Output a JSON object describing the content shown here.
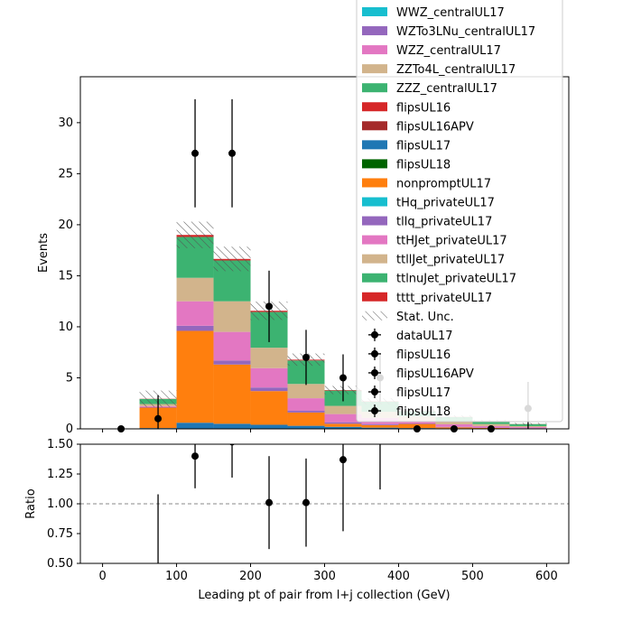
{
  "chart_data": {
    "type": "bar",
    "xlabel": "Leading pt of pair from l+j collection (GeV)",
    "ylabel": "Events",
    "ratio_ylabel": "Ratio",
    "xlim": [
      -30,
      630
    ],
    "ylim": [
      0,
      34.5
    ],
    "ratio_ylim": [
      0.5,
      1.5
    ],
    "x_ticks": [
      0,
      100,
      200,
      300,
      400,
      500,
      600
    ],
    "y_ticks": [
      0,
      5,
      10,
      15,
      20,
      25,
      30
    ],
    "ratio_y_ticks": [
      "0.50",
      "0.75",
      "1.00",
      "1.25",
      "1.50"
    ],
    "ratio_reference_line": 1.0,
    "bin_edges": [
      0,
      50,
      100,
      150,
      200,
      250,
      300,
      350,
      400,
      450,
      500,
      550,
      600
    ],
    "stacked_series": [
      {
        "name": "flipsUL17",
        "color": "#1f77b4",
        "values": [
          0,
          0.08,
          0.6,
          0.5,
          0.4,
          0.3,
          0.2,
          0.12,
          0.08,
          0.05,
          0.04,
          0.02
        ]
      },
      {
        "name": "nonpromptUL17",
        "color": "#ff7f0e",
        "values": [
          0,
          2.0,
          9.0,
          5.8,
          3.3,
          1.3,
          0.3,
          0.25,
          0.4,
          0.1,
          0.05,
          0.03
        ]
      },
      {
        "name": "tllq_privateUL17",
        "color": "#9467bd",
        "values": [
          0,
          0.05,
          0.5,
          0.4,
          0.35,
          0.2,
          0.15,
          0.1,
          0.05,
          0.05,
          0.03,
          0.02
        ]
      },
      {
        "name": "ttHJet_privateUL17",
        "color": "#e377c2",
        "values": [
          0,
          0.1,
          2.4,
          2.8,
          1.9,
          1.2,
          0.8,
          0.6,
          0.3,
          0.25,
          0.15,
          0.1
        ]
      },
      {
        "name": "ttllJet_privateUL17",
        "color": "#d2b48c",
        "values": [
          0,
          0.2,
          2.3,
          3.0,
          2.0,
          1.4,
          0.8,
          0.6,
          0.4,
          0.3,
          0.2,
          0.1
        ]
      },
      {
        "name": "ttlnuJet_privateUL17",
        "color": "#3cb371",
        "values": [
          0,
          0.5,
          4.0,
          4.0,
          3.5,
          2.3,
          1.5,
          1.0,
          0.5,
          0.4,
          0.3,
          0.2
        ]
      },
      {
        "name": "tttt_privateUL17",
        "color": "#d62728",
        "values": [
          0,
          0.02,
          0.2,
          0.15,
          0.12,
          0.08,
          0.05,
          0.03,
          0.02,
          0.02,
          0.01,
          0.01
        ]
      }
    ],
    "stat_unc": [
      0,
      0.8,
      1.3,
      1.2,
      0.9,
      0.6,
      0.4,
      0.3,
      0.2,
      0.15,
      0.1,
      0.1
    ],
    "data_series": {
      "name": "dataUL17",
      "x": [
        25,
        75,
        125,
        175,
        225,
        275,
        325,
        375,
        425,
        475,
        525,
        575
      ],
      "y": [
        0,
        1,
        27,
        27,
        12,
        7,
        5,
        5,
        0,
        0,
        0,
        2
      ],
      "yerr": [
        0,
        2.3,
        5.3,
        5.3,
        3.5,
        2.7,
        2.3,
        2.3,
        0,
        0,
        0,
        2.6
      ]
    },
    "ratio_series": {
      "x": [
        75,
        125,
        175,
        225,
        275,
        325,
        375
      ],
      "y": [
        0.38,
        1.4,
        1.52,
        1.01,
        1.01,
        1.37,
        1.65
      ],
      "yerr": [
        0.7,
        0.27,
        0.3,
        0.39,
        0.37,
        0.6,
        0.53
      ]
    },
    "legend": {
      "placement": "top-right",
      "entries": [
        {
          "label": "WWZ_centralUL17",
          "kind": "patch",
          "color": "#17becf"
        },
        {
          "label": "WZTo3LNu_centralUL17",
          "kind": "patch",
          "color": "#9467bd"
        },
        {
          "label": "WZZ_centralUL17",
          "kind": "patch",
          "color": "#e377c2"
        },
        {
          "label": "ZZTo4L_centralUL17",
          "kind": "patch",
          "color": "#d2b48c"
        },
        {
          "label": "ZZZ_centralUL17",
          "kind": "patch",
          "color": "#3cb371"
        },
        {
          "label": "flipsUL16",
          "kind": "patch",
          "color": "#d62728"
        },
        {
          "label": "flipsUL16APV",
          "kind": "patch",
          "color": "#a52a2a"
        },
        {
          "label": "flipsUL17",
          "kind": "patch",
          "color": "#1f77b4"
        },
        {
          "label": "flipsUL18",
          "kind": "patch",
          "color": "#006400"
        },
        {
          "label": "nonpromptUL17",
          "kind": "patch",
          "color": "#ff7f0e"
        },
        {
          "label": "tHq_privateUL17",
          "kind": "patch",
          "color": "#17becf"
        },
        {
          "label": "tllq_privateUL17",
          "kind": "patch",
          "color": "#9467bd"
        },
        {
          "label": "ttHJet_privateUL17",
          "kind": "patch",
          "color": "#e377c2"
        },
        {
          "label": "ttllJet_privateUL17",
          "kind": "patch",
          "color": "#d2b48c"
        },
        {
          "label": "ttlnuJet_privateUL17",
          "kind": "patch",
          "color": "#3cb371"
        },
        {
          "label": "tttt_privateUL17",
          "kind": "patch",
          "color": "#d62728"
        },
        {
          "label": "Stat. Unc.",
          "kind": "hatch",
          "color": "#555555"
        },
        {
          "label": "dataUL17",
          "kind": "marker",
          "color": "#000000"
        },
        {
          "label": "flipsUL16",
          "kind": "marker",
          "color": "#000000"
        },
        {
          "label": "flipsUL16APV",
          "kind": "marker",
          "color": "#000000"
        },
        {
          "label": "flipsUL17",
          "kind": "marker",
          "color": "#000000"
        },
        {
          "label": "flipsUL18",
          "kind": "marker",
          "color": "#000000"
        }
      ]
    }
  }
}
